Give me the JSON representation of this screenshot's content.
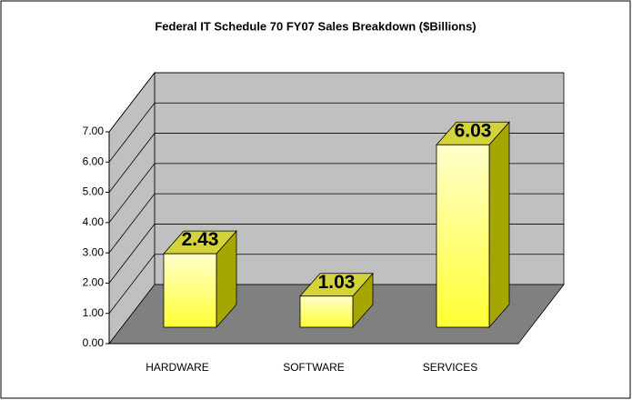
{
  "chart_data": {
    "type": "bar3d",
    "title": "Federal IT Schedule 70 FY07 Sales Breakdown ($Billions)",
    "categories": [
      "HARDWARE",
      "SOFTWARE",
      "SERVICES"
    ],
    "values": [
      2.43,
      1.03,
      6.03
    ],
    "color": "#ffff33",
    "ylim": [
      0,
      7
    ],
    "yticks": [
      {
        "value": 0,
        "label": "0.00"
      },
      {
        "value": 1,
        "label": "1.00"
      },
      {
        "value": 2,
        "label": "2.00"
      },
      {
        "value": 3,
        "label": "3.00"
      },
      {
        "value": 4,
        "label": "4.00"
      },
      {
        "value": 5,
        "label": "5.00"
      },
      {
        "value": 6,
        "label": "6.00"
      },
      {
        "value": 7,
        "label": "7.00"
      }
    ],
    "grid": true
  }
}
